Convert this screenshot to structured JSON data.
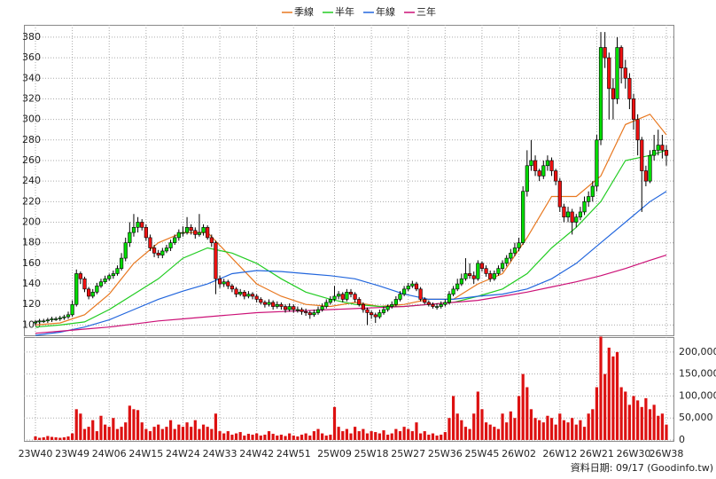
{
  "chart_data": {
    "type": "candlestick",
    "legend": "top",
    "grid": true,
    "annotation": "資料日期: 09/17  (Goodinfo.tw)",
    "categories": [
      "23W40",
      null,
      null,
      null,
      null,
      null,
      null,
      null,
      null,
      "23W49",
      null,
      null,
      null,
      null,
      null,
      null,
      null,
      null,
      "24W06",
      null,
      null,
      null,
      null,
      null,
      null,
      null,
      null,
      "24W15",
      null,
      null,
      null,
      null,
      null,
      null,
      null,
      null,
      "24W24",
      null,
      null,
      null,
      null,
      null,
      null,
      null,
      null,
      "24W33",
      null,
      null,
      null,
      null,
      null,
      null,
      null,
      null,
      "24W42",
      null,
      null,
      null,
      null,
      null,
      null,
      null,
      null,
      "24W51",
      null,
      null,
      null,
      null,
      null,
      null,
      null,
      null,
      null,
      "25W09",
      null,
      null,
      null,
      null,
      null,
      null,
      null,
      null,
      "25W18",
      null,
      null,
      null,
      null,
      null,
      null,
      null,
      null,
      "25W27",
      null,
      null,
      null,
      null,
      null,
      null,
      null,
      null,
      "25W36",
      null,
      null,
      null,
      null,
      null,
      null,
      null,
      null,
      "25W45",
      null,
      null,
      null,
      null,
      null,
      null,
      null,
      null,
      "26W02",
      null,
      null,
      null,
      null,
      null,
      null,
      null,
      null,
      null,
      "26W12",
      null,
      null,
      null,
      null,
      null,
      null,
      null,
      null,
      "26W21",
      null,
      null,
      null,
      null,
      null,
      null,
      null,
      null,
      "26W30",
      null,
      null,
      null,
      null,
      null,
      null,
      null,
      "26W38"
    ],
    "ohlc": [
      [
        102,
        105,
        100,
        103
      ],
      [
        103,
        106,
        101,
        104
      ],
      [
        104,
        106,
        102,
        104
      ],
      [
        104,
        107,
        102,
        105
      ],
      [
        105,
        108,
        103,
        106
      ],
      [
        106,
        108,
        104,
        106
      ],
      [
        106,
        109,
        104,
        107
      ],
      [
        107,
        110,
        105,
        108
      ],
      [
        108,
        113,
        106,
        110
      ],
      [
        110,
        124,
        108,
        120
      ],
      [
        120,
        154,
        118,
        150
      ],
      [
        150,
        152,
        140,
        145
      ],
      [
        145,
        147,
        132,
        135
      ],
      [
        135,
        137,
        125,
        128
      ],
      [
        128,
        135,
        126,
        132
      ],
      [
        132,
        141,
        130,
        138
      ],
      [
        138,
        145,
        136,
        142
      ],
      [
        142,
        148,
        140,
        145
      ],
      [
        145,
        150,
        143,
        148
      ],
      [
        148,
        153,
        145,
        150
      ],
      [
        150,
        158,
        148,
        155
      ],
      [
        155,
        170,
        153,
        165
      ],
      [
        165,
        185,
        162,
        180
      ],
      [
        180,
        200,
        176,
        190
      ],
      [
        190,
        208,
        186,
        195
      ],
      [
        195,
        205,
        190,
        200
      ],
      [
        200,
        203,
        192,
        195
      ],
      [
        195,
        198,
        182,
        185
      ],
      [
        185,
        188,
        172,
        175
      ],
      [
        175,
        178,
        166,
        170
      ],
      [
        170,
        173,
        165,
        168
      ],
      [
        168,
        175,
        165,
        172
      ],
      [
        172,
        178,
        170,
        175
      ],
      [
        175,
        183,
        172,
        180
      ],
      [
        180,
        188,
        178,
        185
      ],
      [
        185,
        193,
        182,
        190
      ],
      [
        190,
        196,
        186,
        190
      ],
      [
        190,
        205,
        188,
        195
      ],
      [
        195,
        198,
        188,
        192
      ],
      [
        192,
        195,
        184,
        188
      ],
      [
        188,
        208,
        186,
        190
      ],
      [
        190,
        198,
        187,
        195
      ],
      [
        195,
        197,
        183,
        185
      ],
      [
        185,
        188,
        176,
        180
      ],
      [
        180,
        182,
        130,
        145
      ],
      [
        145,
        148,
        136,
        140
      ],
      [
        140,
        145,
        137,
        142
      ],
      [
        142,
        144,
        135,
        138
      ],
      [
        138,
        140,
        132,
        135
      ],
      [
        135,
        137,
        127,
        130
      ],
      [
        130,
        135,
        128,
        132
      ],
      [
        132,
        134,
        125,
        128
      ],
      [
        128,
        133,
        126,
        130
      ],
      [
        130,
        132,
        125,
        128
      ],
      [
        128,
        130,
        122,
        125
      ],
      [
        125,
        127,
        120,
        122
      ],
      [
        122,
        124,
        117,
        120
      ],
      [
        120,
        125,
        118,
        122
      ],
      [
        122,
        124,
        115,
        118
      ],
      [
        118,
        123,
        116,
        120
      ],
      [
        120,
        122,
        115,
        118
      ],
      [
        118,
        120,
        112,
        115
      ],
      [
        115,
        121,
        113,
        118
      ],
      [
        118,
        120,
        112,
        115
      ],
      [
        115,
        118,
        112,
        115
      ],
      [
        115,
        117,
        110,
        113
      ],
      [
        113,
        116,
        109,
        112
      ],
      [
        112,
        114,
        106,
        110
      ],
      [
        110,
        115,
        108,
        112
      ],
      [
        112,
        118,
        110,
        115
      ],
      [
        115,
        121,
        113,
        118
      ],
      [
        118,
        125,
        116,
        122
      ],
      [
        122,
        128,
        120,
        125
      ],
      [
        125,
        138,
        123,
        128
      ],
      [
        128,
        133,
        125,
        130
      ],
      [
        130,
        132,
        122,
        125
      ],
      [
        125,
        135,
        123,
        132
      ],
      [
        132,
        135,
        127,
        130
      ],
      [
        130,
        132,
        122,
        125
      ],
      [
        125,
        127,
        118,
        120
      ],
      [
        120,
        122,
        112,
        115
      ],
      [
        115,
        117,
        100,
        112
      ],
      [
        112,
        114,
        106,
        110
      ],
      [
        110,
        112,
        102,
        108
      ],
      [
        108,
        115,
        106,
        112
      ],
      [
        112,
        118,
        110,
        115
      ],
      [
        115,
        120,
        113,
        118
      ],
      [
        118,
        123,
        116,
        120
      ],
      [
        120,
        128,
        118,
        125
      ],
      [
        125,
        133,
        123,
        130
      ],
      [
        130,
        138,
        128,
        135
      ],
      [
        135,
        141,
        133,
        138
      ],
      [
        138,
        143,
        136,
        140
      ],
      [
        140,
        142,
        133,
        135
      ],
      [
        135,
        137,
        123,
        125
      ],
      [
        125,
        127,
        120,
        122
      ],
      [
        122,
        124,
        118,
        120
      ],
      [
        120,
        122,
        116,
        118
      ],
      [
        118,
        121,
        115,
        118
      ],
      [
        118,
        123,
        116,
        120
      ],
      [
        120,
        125,
        118,
        122
      ],
      [
        122,
        133,
        120,
        130
      ],
      [
        130,
        138,
        128,
        135
      ],
      [
        135,
        145,
        133,
        140
      ],
      [
        140,
        150,
        138,
        145
      ],
      [
        145,
        165,
        143,
        150
      ],
      [
        150,
        160,
        145,
        148
      ],
      [
        148,
        152,
        140,
        145
      ],
      [
        145,
        163,
        143,
        160
      ],
      [
        160,
        162,
        152,
        155
      ],
      [
        155,
        158,
        147,
        150
      ],
      [
        150,
        153,
        142,
        145
      ],
      [
        145,
        153,
        143,
        150
      ],
      [
        150,
        158,
        148,
        155
      ],
      [
        155,
        163,
        152,
        160
      ],
      [
        160,
        168,
        157,
        165
      ],
      [
        165,
        174,
        162,
        170
      ],
      [
        170,
        180,
        167,
        175
      ],
      [
        175,
        185,
        172,
        180
      ],
      [
        180,
        235,
        178,
        230
      ],
      [
        230,
        270,
        225,
        255
      ],
      [
        255,
        280,
        250,
        260
      ],
      [
        260,
        265,
        245,
        250
      ],
      [
        250,
        252,
        240,
        245
      ],
      [
        245,
        260,
        242,
        255
      ],
      [
        255,
        265,
        250,
        260
      ],
      [
        260,
        263,
        245,
        250
      ],
      [
        250,
        252,
        236,
        240
      ],
      [
        240,
        243,
        210,
        215
      ],
      [
        215,
        218,
        200,
        205
      ],
      [
        205,
        215,
        200,
        210
      ],
      [
        210,
        213,
        188,
        200
      ],
      [
        200,
        208,
        195,
        205
      ],
      [
        205,
        215,
        202,
        210
      ],
      [
        210,
        225,
        207,
        220
      ],
      [
        220,
        230,
        215,
        225
      ],
      [
        225,
        240,
        220,
        235
      ],
      [
        235,
        285,
        230,
        280
      ],
      [
        280,
        385,
        275,
        370
      ],
      [
        370,
        385,
        350,
        360
      ],
      [
        360,
        365,
        300,
        330
      ],
      [
        330,
        340,
        300,
        320
      ],
      [
        320,
        380,
        315,
        370
      ],
      [
        370,
        372,
        335,
        350
      ],
      [
        350,
        358,
        330,
        340
      ],
      [
        340,
        345,
        310,
        320
      ],
      [
        320,
        325,
        290,
        300
      ],
      [
        300,
        305,
        265,
        280
      ],
      [
        280,
        283,
        210,
        250
      ],
      [
        250,
        255,
        235,
        240
      ],
      [
        240,
        270,
        238,
        265
      ],
      [
        265,
        285,
        260,
        270
      ],
      [
        270,
        290,
        265,
        275
      ],
      [
        275,
        285,
        262,
        270
      ],
      [
        270,
        275,
        255,
        265
      ]
    ],
    "up_color": "#00dd00",
    "down_color": "#ee1111",
    "ylim": [
      90,
      392
    ],
    "yticks": [
      100,
      120,
      140,
      160,
      180,
      200,
      220,
      240,
      260,
      280,
      300,
      320,
      340,
      360,
      380
    ],
    "volume": {
      "color": "#dd1111",
      "values": [
        8000,
        5000,
        6000,
        9000,
        7000,
        6000,
        5000,
        6000,
        8000,
        15000,
        70000,
        60000,
        25000,
        30000,
        45000,
        20000,
        55000,
        35000,
        30000,
        50000,
        25000,
        30000,
        40000,
        78000,
        70000,
        68000,
        40000,
        25000,
        20000,
        30000,
        35000,
        25000,
        30000,
        45000,
        25000,
        35000,
        30000,
        40000,
        30000,
        45000,
        25000,
        35000,
        30000,
        25000,
        60000,
        20000,
        15000,
        20000,
        12000,
        15000,
        18000,
        10000,
        14000,
        12000,
        15000,
        10000,
        12000,
        20000,
        14000,
        10000,
        12000,
        9000,
        15000,
        10000,
        8000,
        12000,
        15000,
        10000,
        20000,
        25000,
        15000,
        10000,
        12000,
        75000,
        30000,
        20000,
        25000,
        15000,
        30000,
        20000,
        25000,
        15000,
        20000,
        18000,
        15000,
        22000,
        12000,
        15000,
        25000,
        20000,
        30000,
        25000,
        20000,
        40000,
        15000,
        20000,
        12000,
        15000,
        10000,
        12000,
        18000,
        50000,
        100000,
        60000,
        45000,
        30000,
        25000,
        60000,
        110000,
        70000,
        40000,
        35000,
        30000,
        25000,
        60000,
        40000,
        65000,
        50000,
        100000,
        150000,
        120000,
        70000,
        50000,
        45000,
        40000,
        55000,
        50000,
        35000,
        60000,
        45000,
        40000,
        50000,
        35000,
        45000,
        30000,
        60000,
        70000,
        120000,
        235000,
        150000,
        210000,
        190000,
        200000,
        120000,
        110000,
        80000,
        100000,
        90000,
        75000,
        95000,
        70000,
        80000,
        55000,
        60000,
        35000
      ],
      "y2lim": [
        0,
        234000
      ],
      "y2ticks": [
        0,
        {
          "value": 50000,
          "label": "50,000"
        },
        {
          "value": 100000,
          "label": "100,000"
        },
        {
          "value": 150000,
          "label": "150,000"
        },
        {
          "value": 200000,
          "label": "200,000"
        }
      ]
    },
    "series": [
      {
        "name": "季線",
        "color": "#e87820",
        "x": [
          0,
          6,
          12,
          18,
          24,
          30,
          36,
          42,
          48,
          54,
          60,
          66,
          72,
          78,
          84,
          90,
          96,
          102,
          108,
          114,
          120,
          126,
          132,
          138,
          144,
          150,
          154
        ],
        "values": [
          100,
          102,
          110,
          130,
          160,
          180,
          190,
          190,
          165,
          140,
          128,
          120,
          118,
          122,
          118,
          120,
          125,
          125,
          140,
          150,
          185,
          225,
          225,
          245,
          295,
          305,
          285
        ]
      },
      {
        "name": "半年",
        "color": "#22cc22",
        "x": [
          0,
          6,
          12,
          18,
          24,
          30,
          36,
          42,
          48,
          54,
          60,
          66,
          72,
          78,
          84,
          90,
          96,
          102,
          108,
          114,
          120,
          126,
          132,
          138,
          144,
          150,
          154
        ],
        "values": [
          98,
          100,
          103,
          115,
          130,
          145,
          165,
          175,
          170,
          160,
          145,
          132,
          125,
          120,
          118,
          118,
          120,
          122,
          128,
          135,
          150,
          175,
          195,
          220,
          260,
          265,
          270
        ]
      },
      {
        "name": "年線",
        "color": "#2266dd",
        "x": [
          0,
          6,
          12,
          18,
          24,
          30,
          36,
          42,
          48,
          54,
          60,
          66,
          72,
          78,
          84,
          90,
          96,
          102,
          108,
          114,
          120,
          126,
          132,
          138,
          144,
          150,
          154
        ],
        "values": [
          90,
          93,
          98,
          105,
          115,
          125,
          133,
          140,
          150,
          153,
          152,
          150,
          148,
          145,
          138,
          130,
          125,
          125,
          128,
          130,
          135,
          145,
          160,
          180,
          200,
          220,
          230
        ]
      },
      {
        "name": "三年",
        "color": "#cc1177",
        "x": [
          0,
          6,
          12,
          18,
          24,
          30,
          36,
          42,
          48,
          54,
          60,
          66,
          72,
          78,
          84,
          90,
          96,
          102,
          108,
          114,
          120,
          126,
          132,
          138,
          144,
          150,
          154
        ],
        "values": [
          92,
          94,
          96,
          98,
          101,
          104,
          106,
          108,
          110,
          112,
          113,
          114,
          115,
          116,
          117,
          118,
          120,
          122,
          124,
          128,
          132,
          137,
          142,
          148,
          155,
          163,
          168
        ]
      }
    ]
  }
}
